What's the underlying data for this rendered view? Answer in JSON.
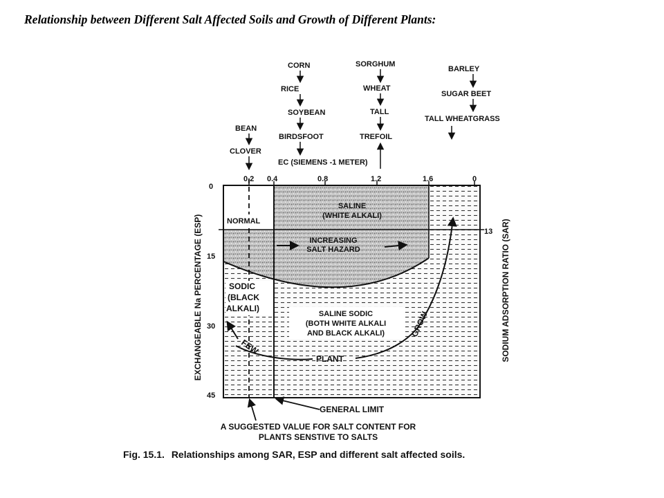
{
  "page": {
    "heading": "Relationship between Different Salt Affected Soils and Growth of Different Plants:",
    "caption_prefix": "Fig. 15.1.",
    "caption_text": "Relationships among SAR, ESP and different salt affected soils."
  },
  "crops": {
    "group_1": [
      "BEAN",
      "CLOVER"
    ],
    "group_2": [
      "CORN",
      "RICE",
      "SOYBEAN",
      "BIRDSFOOT"
    ],
    "group_3": [
      "SORGHUM",
      "WHEAT",
      "TALL",
      "TREFOIL"
    ],
    "group_4": [
      "BARLEY",
      "SUGAR BEET",
      "TALL WHEATGRASS"
    ]
  },
  "axes": {
    "top_title": "EC (SIEMENS -1 METER)",
    "top_ticks": [
      "0.2",
      "0.4",
      "0.8",
      "1.2",
      "1.6",
      "0"
    ],
    "left_title": "EXCHANGEABLE Na PERCENTAGE (ESP)",
    "left_ticks": [
      "0",
      "15",
      "30",
      "45"
    ],
    "right_title": "SODIUM ADSORPTION RATIO (SAR)",
    "right_tick": "13"
  },
  "regions": {
    "normal": "NORMAL",
    "saline_1": "SALINE",
    "saline_2": "(WHITE ALKALI)",
    "hazard_1": "INCREASING",
    "hazard_2": "SALT HAZARD",
    "sodic_1": "SODIC",
    "sodic_2": "(BLACK",
    "sodic_3": "ALKALI)",
    "ss_1": "SALINE SODIC",
    "ss_2": "(BOTH WHITE ALKALI",
    "ss_3": "AND BLACK ALKALI)",
    "few": "FEW",
    "plant": "PLANT",
    "grow": "GROW"
  },
  "annotations": {
    "general_limit": "GENERAL LIMIT",
    "suggested_1": "A SUGGESTED VALUE FOR SALT CONTENT FOR",
    "suggested_2": "PLANTS SENSTIVE TO SALTS"
  }
}
